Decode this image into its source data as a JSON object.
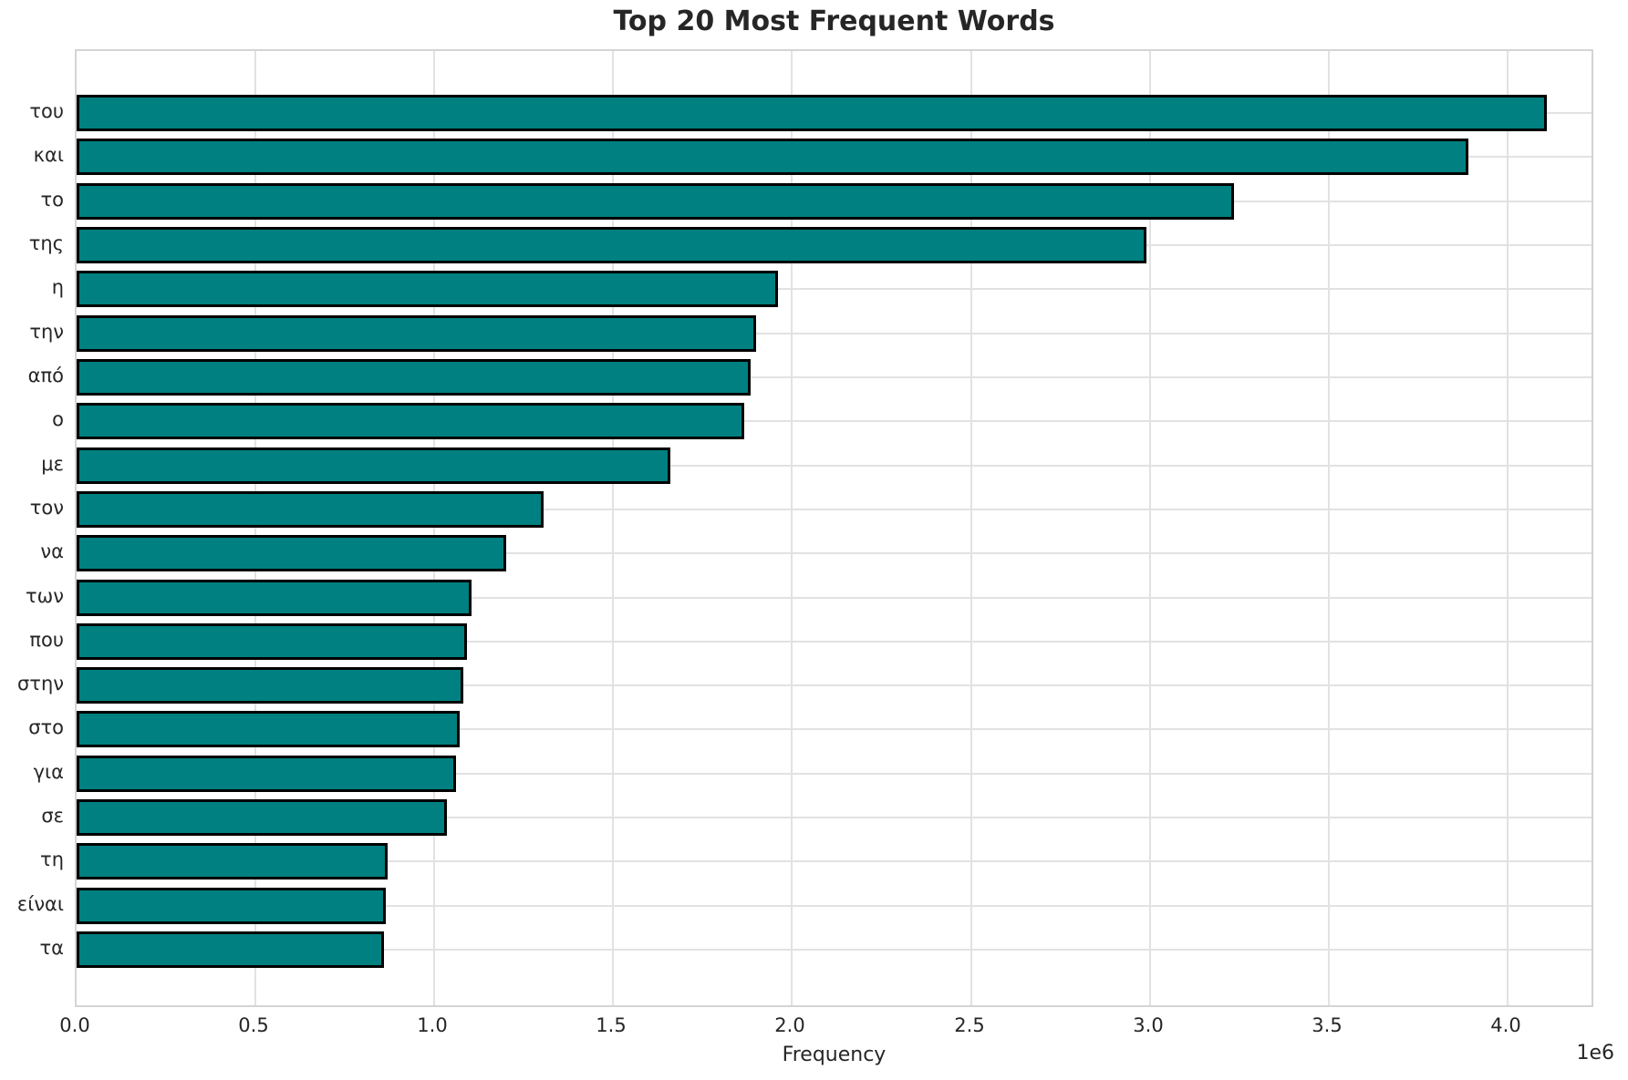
{
  "chart_data": {
    "type": "bar",
    "orientation": "horizontal",
    "title": "Top 20 Most Frequent Words",
    "xlabel": "Frequency",
    "ylabel": "",
    "x_offset_label": "1e6",
    "categories": [
      "του",
      "και",
      "το",
      "της",
      "η",
      "την",
      "από",
      "ο",
      "με",
      "τον",
      "να",
      "των",
      "που",
      "στην",
      "στο",
      "για",
      "σε",
      "τη",
      "είναι",
      "τα"
    ],
    "values": [
      4110000,
      3890000,
      3235000,
      2990000,
      1960000,
      1900000,
      1885000,
      1865000,
      1660000,
      1305000,
      1200000,
      1105000,
      1090000,
      1080000,
      1070000,
      1060000,
      1035000,
      870000,
      865000,
      858000
    ],
    "xlim": [
      0,
      4245000
    ],
    "xticks": [
      0,
      500000,
      1000000,
      1500000,
      2000000,
      2500000,
      3000000,
      3500000,
      4000000
    ],
    "xtick_labels": [
      "0.0",
      "0.5",
      "1.0",
      "1.5",
      "2.0",
      "2.5",
      "3.0",
      "3.5",
      "4.0"
    ],
    "grid": true,
    "legend": "none",
    "bar_color": "#008080",
    "bar_edge_color": "#000000"
  }
}
